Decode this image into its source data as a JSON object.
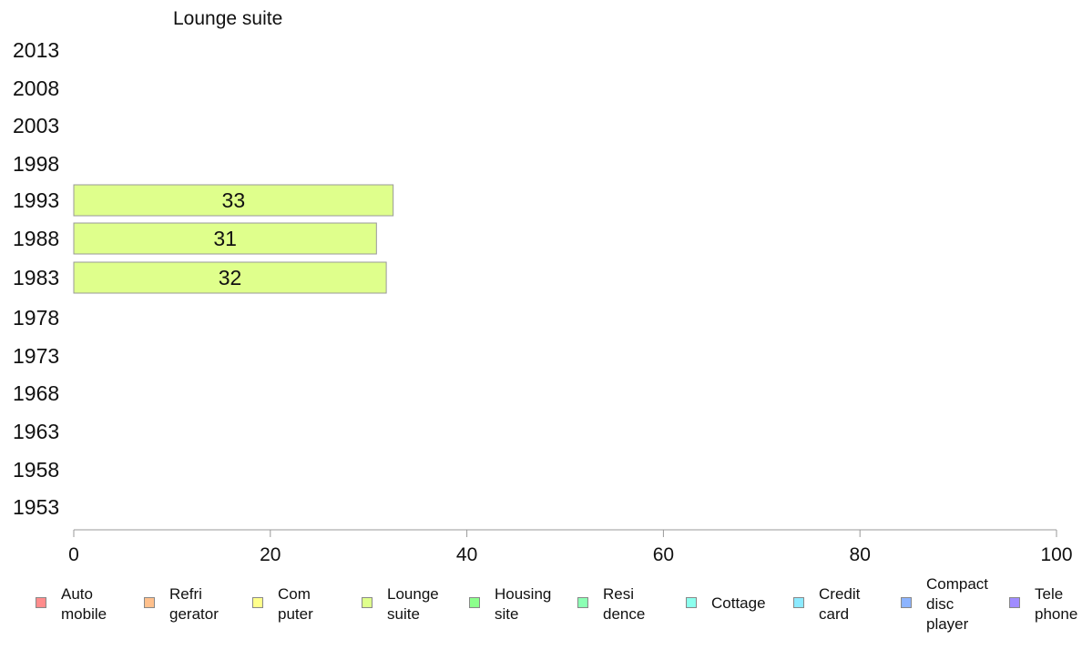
{
  "chart_data": {
    "type": "bar",
    "orientation": "horizontal",
    "title": "Lounge suite",
    "categories": [
      "2013",
      "2008",
      "2003",
      "1998",
      "1993",
      "1988",
      "1983",
      "1978",
      "1973",
      "1968",
      "1963",
      "1958",
      "1953"
    ],
    "series": [
      {
        "values": [
          null,
          null,
          null,
          null,
          32.5,
          30.8,
          31.8,
          null,
          null,
          null,
          null,
          null,
          null
        ],
        "labels": [
          "",
          "",
          "",
          "",
          "33",
          "31",
          "32",
          "",
          "",
          "",
          "",
          "",
          ""
        ],
        "color": "#dfff8c"
      }
    ],
    "xlim": [
      0,
      100
    ],
    "xticks": [
      0,
      20,
      40,
      60,
      80,
      100
    ],
    "grid": false,
    "legend_position": "bottom",
    "legend": [
      {
        "label": "Auto\nmobile",
        "color": "#ff8c8c"
      },
      {
        "label": "Refri\ngerator",
        "color": "#ffc08c"
      },
      {
        "label": "Com\nputer",
        "color": "#ffff8c"
      },
      {
        "label": "Lounge\nsuite",
        "color": "#dfff8c"
      },
      {
        "label": "Housing\nsite",
        "color": "#8cff8c"
      },
      {
        "label": "Resi\ndence",
        "color": "#8cffb4"
      },
      {
        "label": "Cottage",
        "color": "#8cffee"
      },
      {
        "label": "Credit\ncard",
        "color": "#8ceaff"
      },
      {
        "label": "Compact\ndisc\nplayer",
        "color": "#8cb4ff"
      },
      {
        "label": "Tele\nphone",
        "color": "#a08cff"
      }
    ]
  }
}
